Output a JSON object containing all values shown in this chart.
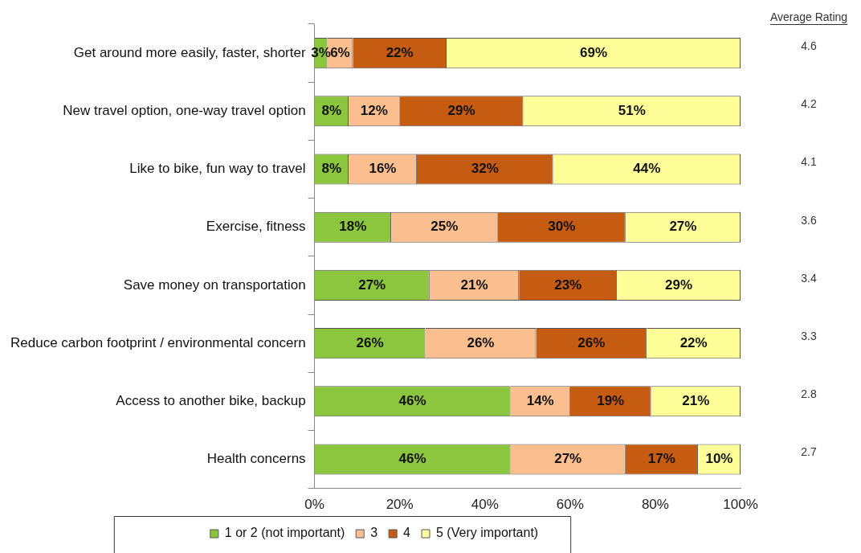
{
  "chart_data": {
    "type": "bar",
    "orientation": "horizontal",
    "stacked": true,
    "categories": [
      "Get around more easily, faster, shorter",
      "New travel option, one-way travel option",
      "Like to bike, fun way to travel",
      "Exercise, fitness",
      "Save money on transportation",
      "Reduce carbon footprint / environmental concern",
      "Access to another bike, backup",
      "Health concerns"
    ],
    "series": [
      {
        "name": "1 or 2 (not important)",
        "color": "#8cc63e",
        "values": [
          3,
          8,
          8,
          18,
          27,
          26,
          46,
          46
        ],
        "value_labels": [
          "3%",
          "8%",
          "8%",
          "18%",
          "27%",
          "26%",
          "46%",
          "46%"
        ]
      },
      {
        "name": "3",
        "color": "#fbbf8f",
        "values": [
          6,
          12,
          16,
          25,
          21,
          26,
          14,
          27
        ],
        "value_labels": [
          "6%",
          "12%",
          "16%",
          "25%",
          "21%",
          "26%",
          "14%",
          "27%"
        ]
      },
      {
        "name": "4",
        "color": "#c65b12",
        "values": [
          22,
          29,
          32,
          30,
          23,
          26,
          19,
          17
        ],
        "value_labels": [
          "22%",
          "29%",
          "32%",
          "30%",
          "23%",
          "26%",
          "19%",
          "17%"
        ]
      },
      {
        "name": "5 (Very important)",
        "color": "#ffff99",
        "values": [
          69,
          51,
          44,
          27,
          29,
          22,
          21,
          10
        ],
        "value_labels": [
          "69%",
          "51%",
          "44%",
          "27%",
          "29%",
          "22%",
          "21%",
          "10%"
        ]
      }
    ],
    "xlim": [
      0,
      100
    ],
    "xticks": [
      {
        "value": 0,
        "label": "0%"
      },
      {
        "value": 20,
        "label": "20%"
      },
      {
        "value": 40,
        "label": "40%"
      },
      {
        "value": 60,
        "label": "60%"
      },
      {
        "value": 80,
        "label": "80%"
      },
      {
        "value": 100,
        "label": "100%"
      }
    ],
    "grid": false,
    "legend": "bottom",
    "annotations": [
      "Average Rating",
      "4.6",
      "4.2",
      "4.1",
      "3.6",
      "3.4",
      "3.3",
      "2.8",
      "2.7"
    ]
  }
}
